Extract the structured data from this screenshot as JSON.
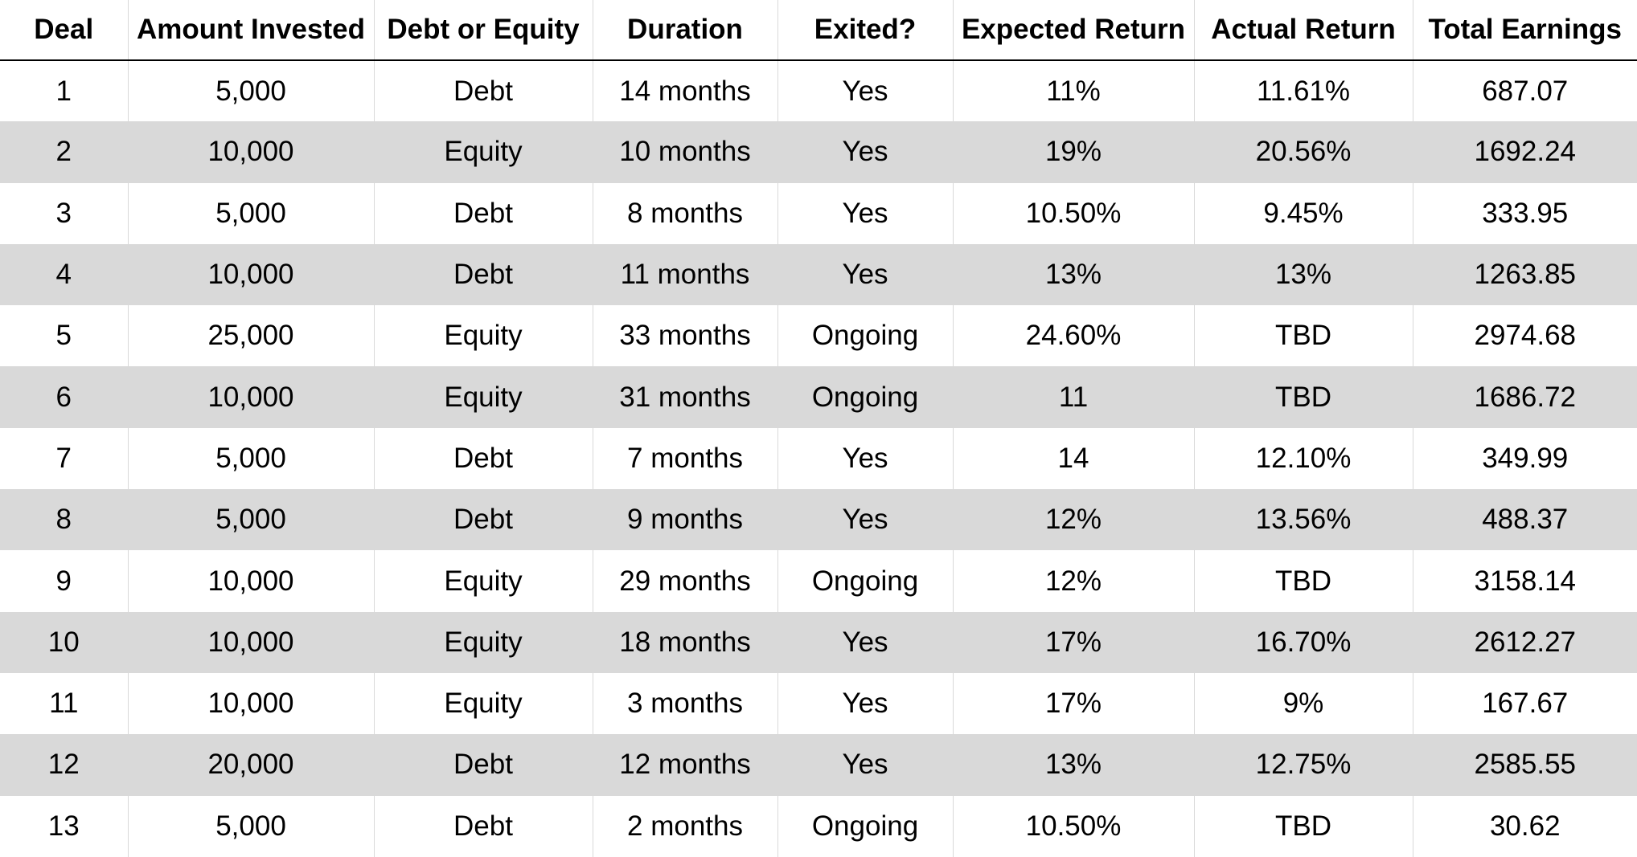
{
  "chart_data": {
    "type": "table",
    "columns": [
      "Deal",
      "Amount Invested",
      "Debt or Equity",
      "Duration",
      "Exited?",
      "Expected Return",
      "Actual Return",
      "Total Earnings"
    ],
    "rows": [
      [
        "1",
        "5,000",
        "Debt",
        "14 months",
        "Yes",
        "11%",
        "11.61%",
        "687.07"
      ],
      [
        "2",
        "10,000",
        "Equity",
        "10 months",
        "Yes",
        "19%",
        "20.56%",
        "1692.24"
      ],
      [
        "3",
        "5,000",
        "Debt",
        "8 months",
        "Yes",
        "10.50%",
        "9.45%",
        "333.95"
      ],
      [
        "4",
        "10,000",
        "Debt",
        "11 months",
        "Yes",
        "13%",
        "13%",
        "1263.85"
      ],
      [
        "5",
        "25,000",
        "Equity",
        "33 months",
        "Ongoing",
        "24.60%",
        "TBD",
        "2974.68"
      ],
      [
        "6",
        "10,000",
        "Equity",
        "31 months",
        "Ongoing",
        "11",
        "TBD",
        "1686.72"
      ],
      [
        "7",
        "5,000",
        "Debt",
        "7 months",
        "Yes",
        "14",
        "12.10%",
        "349.99"
      ],
      [
        "8",
        "5,000",
        "Debt",
        "9 months",
        "Yes",
        "12%",
        "13.56%",
        "488.37"
      ],
      [
        "9",
        "10,000",
        "Equity",
        "29 months",
        "Ongoing",
        "12%",
        "TBD",
        "3158.14"
      ],
      [
        "10",
        "10,000",
        "Equity",
        "18 months",
        "Yes",
        "17%",
        "16.70%",
        "2612.27"
      ],
      [
        "11",
        "10,000",
        "Equity",
        "3 months",
        "Yes",
        "17%",
        "9%",
        "167.67"
      ],
      [
        "12",
        "20,000",
        "Debt",
        "12 months",
        "Yes",
        "13%",
        "12.75%",
        "2585.55"
      ],
      [
        "13",
        "5,000",
        "Debt",
        "2 months",
        "Ongoing",
        "10.50%",
        "TBD",
        "30.62"
      ]
    ],
    "colors": {
      "header_rule": "#000000",
      "stripe": "#d9d9d9",
      "background": "#ffffff",
      "text": "#000000"
    }
  }
}
